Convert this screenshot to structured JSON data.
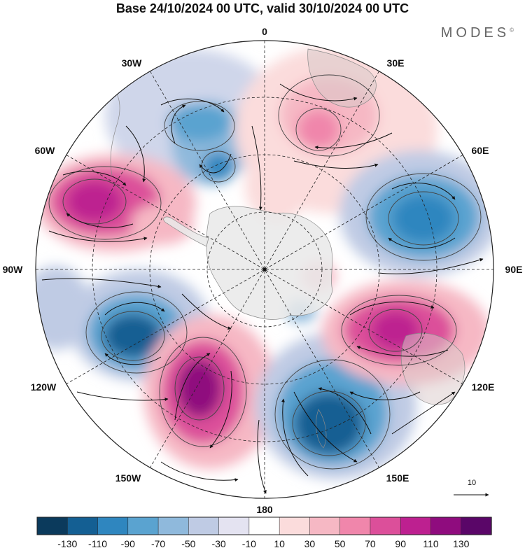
{
  "title": "Base 24/10/2024 00 UTC, valid 30/10/2024 00 UTC",
  "brand": "MODES",
  "brand_mark": "©",
  "longitude_labels": {
    "lon_0": "0",
    "lon_30E": "30E",
    "lon_60E": "60E",
    "lon_90E": "90E",
    "lon_120E": "120E",
    "lon_150E": "150E",
    "lon_180": "180",
    "lon_150W": "150W",
    "lon_120W": "120W",
    "lon_90W": "90W",
    "lon_60W": "60W",
    "lon_30W": "30W"
  },
  "vector_reference": {
    "label": "10"
  },
  "colorbar": {
    "colors": [
      "#0b3a5c",
      "#145f93",
      "#2f86bf",
      "#5aa3d0",
      "#8fb9dc",
      "#bfcbe4",
      "#e4e3f1",
      "#ffffff",
      "#fbdcdc",
      "#f6b8c4",
      "#f086ab",
      "#dc4f9a",
      "#bd2090",
      "#8f0c7e",
      "#5a0668"
    ],
    "tick_labels": [
      "-130",
      "-110",
      "-90",
      "-70",
      "-50",
      "-30",
      "-10",
      "10",
      "30",
      "50",
      "70",
      "90",
      "110",
      "130"
    ]
  },
  "map_style": {
    "projection": "south polar stereographic",
    "graticule": "dashed",
    "streamlines": "black with arrows",
    "land_shading": "light grey outline"
  }
}
